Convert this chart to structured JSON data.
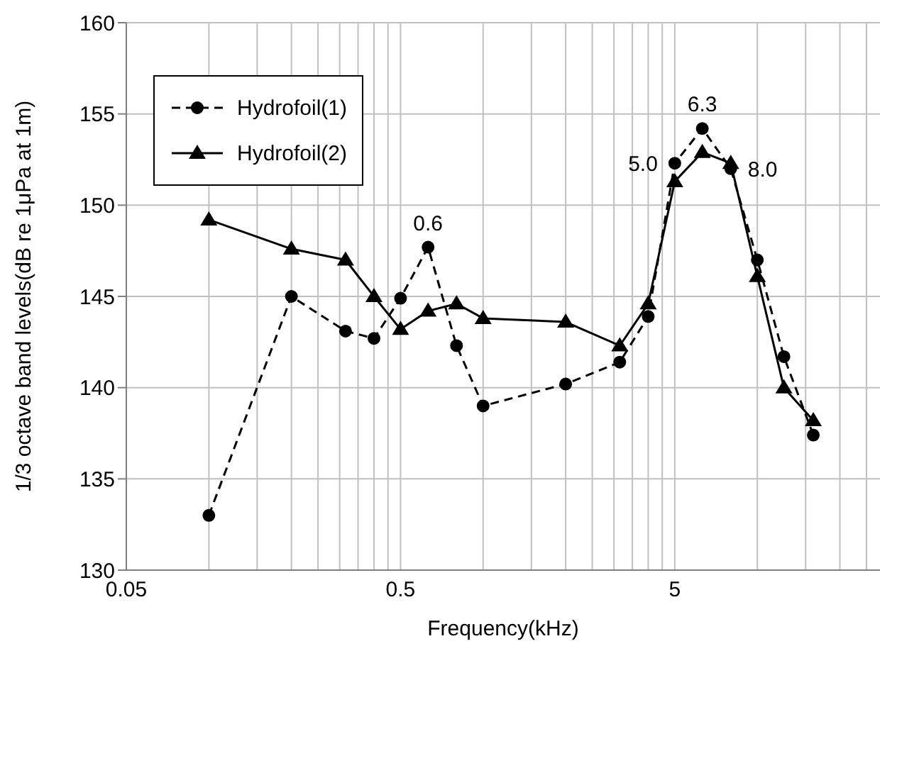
{
  "chart_data": {
    "type": "line",
    "xlabel": "Frequency(kHz)",
    "ylabel": "1/3 octave band levels(dB re 1μPa at 1m)",
    "log": "x",
    "grid": true,
    "legend": "top left",
    "xlim": [
      0.05,
      28
    ],
    "xticks": [
      0.05,
      {
        "value": 0.1,
        "label": null
      },
      {
        "value": 0.15,
        "label": null
      },
      {
        "value": 0.2,
        "label": null
      },
      {
        "value": 0.25,
        "label": null
      },
      {
        "value": 0.3,
        "label": null
      },
      {
        "value": 0.35,
        "label": null
      },
      {
        "value": 0.4,
        "label": null
      },
      {
        "value": 0.45,
        "label": null
      },
      0.5,
      {
        "value": 1,
        "label": null
      },
      {
        "value": 1.5,
        "label": null
      },
      {
        "value": 2,
        "label": null
      },
      {
        "value": 2.5,
        "label": null
      },
      {
        "value": 3,
        "label": null
      },
      {
        "value": 3.5,
        "label": null
      },
      {
        "value": 4,
        "label": null
      },
      {
        "value": 4.5,
        "label": null
      },
      5,
      {
        "value": 10,
        "label": null
      },
      {
        "value": 15,
        "label": null
      },
      {
        "value": 20,
        "label": null
      },
      {
        "value": 25,
        "label": null
      }
    ],
    "ylim": [
      130,
      160
    ],
    "yticks": [
      130,
      135,
      140,
      145,
      150,
      155,
      160
    ],
    "x": [
      0.1,
      0.2,
      0.315,
      0.4,
      0.5,
      0.63,
      0.8,
      1.0,
      2.0,
      3.15,
      4.0,
      5.0,
      6.3,
      8.0,
      10,
      12.5,
      16
    ],
    "series": [
      {
        "name": "Hydrofoil(1)",
        "color": "#000000",
        "marker": "circle",
        "line_style": "dashed",
        "values": [
          133.0,
          145.0,
          143.1,
          142.7,
          144.9,
          147.7,
          142.3,
          139.0,
          140.2,
          141.4,
          143.9,
          152.3,
          154.2,
          152.0,
          147.0,
          141.7,
          137.4
        ]
      },
      {
        "name": "Hydrofoil(2)",
        "color": "#000000",
        "marker": "triangle",
        "line_style": "solid",
        "values": [
          149.2,
          147.6,
          147.0,
          145.0,
          143.2,
          144.2,
          144.6,
          143.8,
          143.6,
          142.3,
          144.6,
          151.3,
          152.9,
          152.3,
          146.1,
          140.0,
          138.2
        ]
      }
    ],
    "annotations": [
      {
        "text": "0.6",
        "x": 0.63,
        "y": 147.7
      },
      {
        "text": "5.0",
        "x": 5.0,
        "y": 152.3
      },
      {
        "text": "6.3",
        "x": 6.3,
        "y": 154.2
      },
      {
        "text": "8.0",
        "x": 8.0,
        "y": 152.0
      }
    ]
  }
}
